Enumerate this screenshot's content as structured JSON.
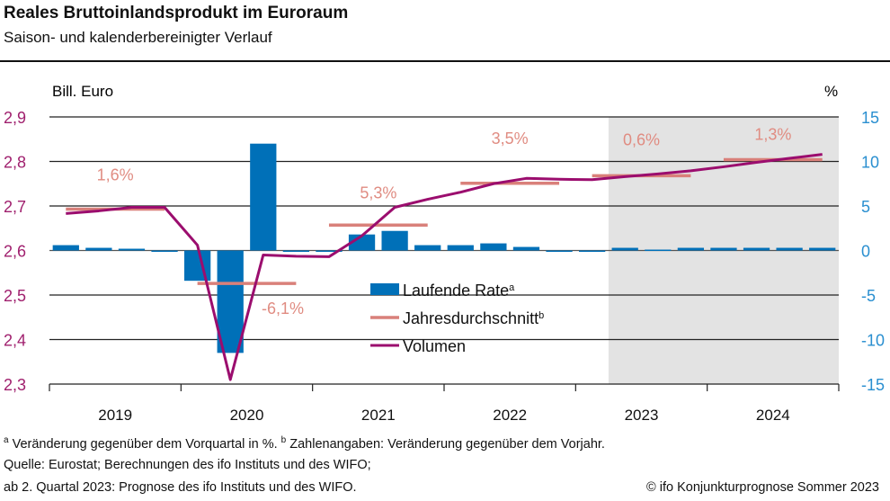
{
  "header": {
    "title": "Reales Bruttoinlandsprodukt im Euroraum",
    "subtitle": "Saison- und kalenderbereinigter Verlauf"
  },
  "colors": {
    "bars": "#0070b8",
    "annual_avg": "#d9807a",
    "volume": "#9b0d6e",
    "left_axis": "#a0206e",
    "right_axis": "#2a8fd0",
    "forecast_shade": "#e3e3e3",
    "annual_label": "#e08c82"
  },
  "chart_data": {
    "type": "bar+line",
    "title": "Reales Bruttoinlandsprodukt im Euroraum",
    "subtitle": "Saison- und kalenderbereinigter Verlauf",
    "left_axis": {
      "label": "Bill. Euro",
      "ylim": [
        2.3,
        2.9
      ],
      "ticks": [
        "2,9",
        "2,8",
        "2,7",
        "2,6",
        "2,5",
        "2,4",
        "2,3"
      ],
      "tick_values": [
        2.9,
        2.8,
        2.7,
        2.6,
        2.5,
        2.4,
        2.3
      ]
    },
    "right_axis": {
      "label": "%",
      "ylim": [
        -15,
        15
      ],
      "ticks": [
        "15",
        "10",
        "5",
        "0",
        "-5",
        "-10",
        "-15"
      ],
      "tick_values": [
        15,
        10,
        5,
        0,
        -5,
        -10,
        -15
      ]
    },
    "years": [
      "2019",
      "2020",
      "2021",
      "2022",
      "2023",
      "2024"
    ],
    "quarters_per_year": 4,
    "forecast_start": "2023 Q2",
    "grid": true,
    "legend_position": "center",
    "legend": [
      {
        "key": "bars",
        "label": "Laufende Rate",
        "sup": "a"
      },
      {
        "key": "annual",
        "label": "Jahresdurchschnitt",
        "sup": "b"
      },
      {
        "key": "volume",
        "label": "Volumen",
        "sup": ""
      }
    ],
    "series": [
      {
        "name": "Laufende Rate",
        "type": "bar",
        "axis": "right",
        "unit": "%",
        "values": [
          0.6,
          0.3,
          0.2,
          -0.1,
          -3.4,
          -11.5,
          12.0,
          -0.1,
          -0.1,
          1.8,
          2.2,
          0.6,
          0.6,
          0.8,
          0.4,
          -0.1,
          -0.1,
          0.3,
          0.1,
          0.3,
          0.3,
          0.3,
          0.3,
          0.3
        ]
      },
      {
        "name": "Volumen",
        "type": "line",
        "axis": "left",
        "unit": "Bill. Euro",
        "values": [
          2.683,
          2.689,
          2.697,
          2.697,
          2.612,
          2.31,
          2.59,
          2.587,
          2.586,
          2.633,
          2.697,
          2.715,
          2.731,
          2.75,
          2.762,
          2.76,
          2.759,
          2.766,
          2.772,
          2.779,
          2.788,
          2.798,
          2.807,
          2.816
        ]
      },
      {
        "name": "Jahresdurchschnitt",
        "type": "step",
        "axis": "left",
        "values": [
          2.693,
          2.526,
          2.657,
          2.751,
          2.768,
          2.804
        ],
        "labels": [
          "1,6%",
          "-6,1%",
          "5,3%",
          "3,5%",
          "0,6%",
          "1,3%"
        ]
      }
    ]
  },
  "footnotes": {
    "line1_a_sup": "a",
    "line1_a": " Veränderung gegenüber dem Vorquartal in %. ",
    "line1_b_sup": "b",
    "line1_b": " Zahlenangaben: Veränderung gegenüber dem Vorjahr.",
    "line2": "Quelle: Eurostat; Berechnungen des ifo Instituts und des WIFO;",
    "line3": "ab 2. Quartal 2023: Prognose des ifo Instituts und des WIFO.",
    "copyright": "© ifo Konjunkturprognose Sommer 2023"
  }
}
